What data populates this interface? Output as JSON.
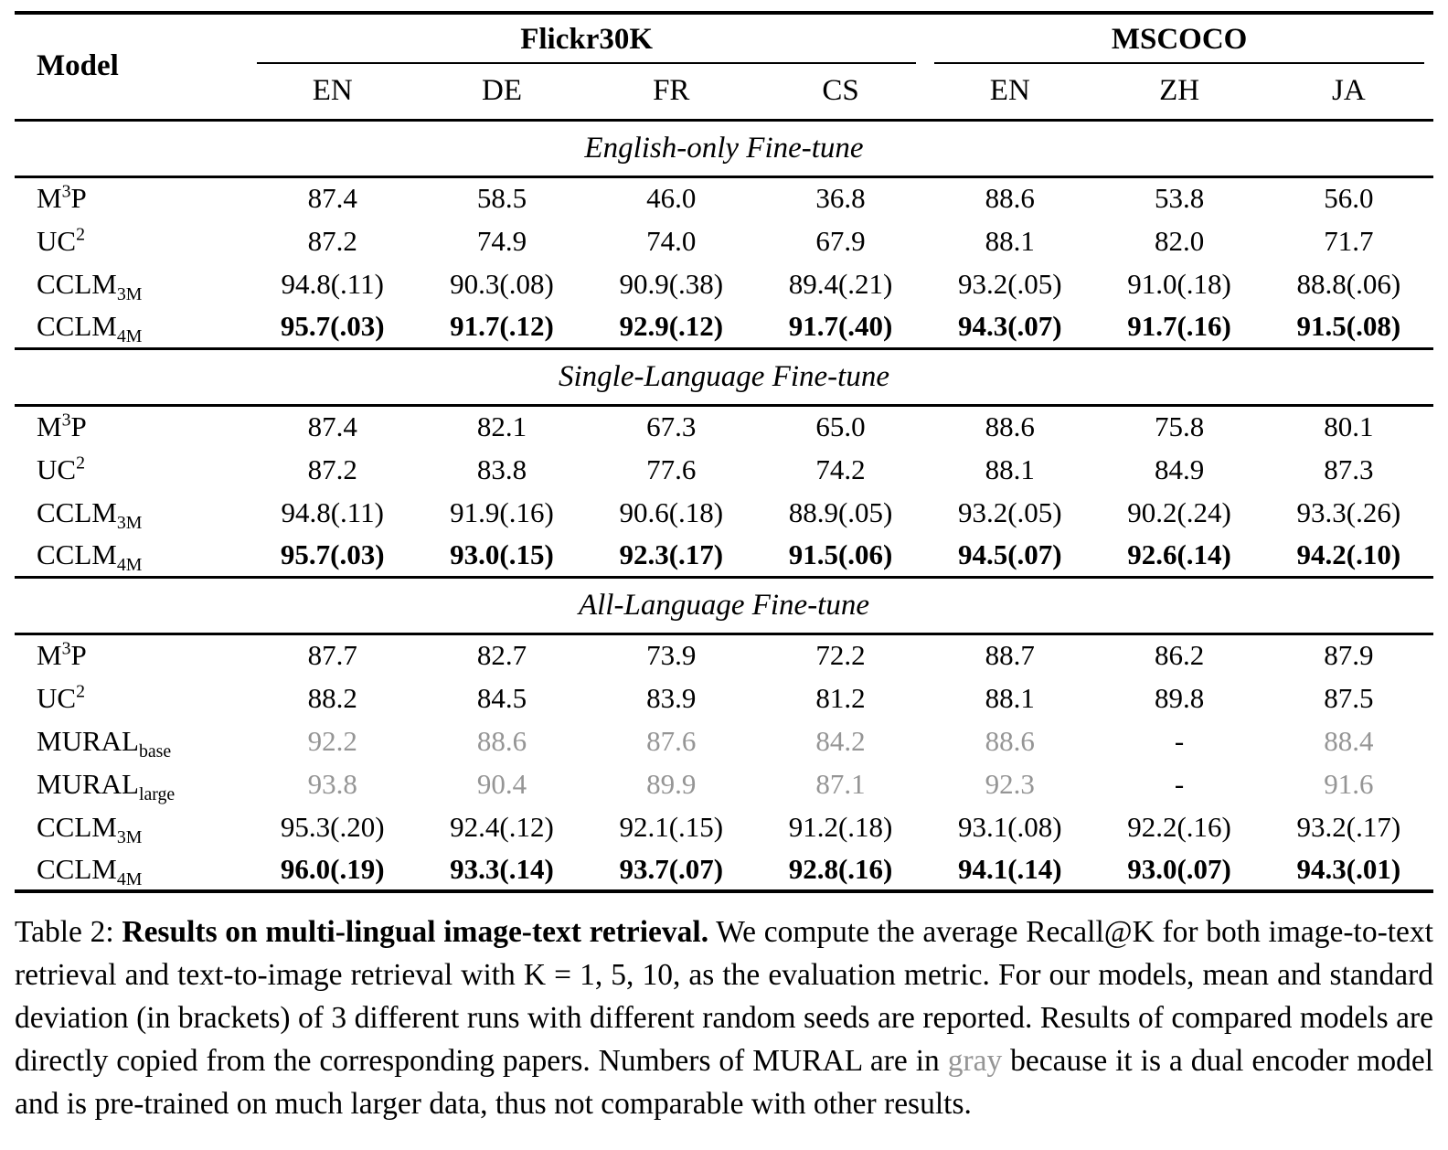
{
  "colors": {
    "text": "#000000",
    "muted_gray": "#959595",
    "background": "#ffffff"
  },
  "table": {
    "model_header": "Model",
    "groups": [
      {
        "label": "Flickr30K",
        "cols": [
          "EN",
          "DE",
          "FR",
          "CS"
        ]
      },
      {
        "label": "MSCOCO",
        "cols": [
          "EN",
          "ZH",
          "JA"
        ]
      }
    ],
    "sections": [
      {
        "title": "English-only Fine-tune",
        "rows": [
          {
            "model": [
              {
                "t": "M"
              },
              {
                "t": "3",
                "sup": true
              },
              {
                "t": "P"
              }
            ],
            "style": "normal",
            "values": [
              "87.4",
              "58.5",
              "46.0",
              "36.8",
              "88.6",
              "53.8",
              "56.0"
            ]
          },
          {
            "model": [
              {
                "t": "UC"
              },
              {
                "t": "2",
                "sup": true
              }
            ],
            "style": "normal",
            "values": [
              "87.2",
              "74.9",
              "74.0",
              "67.9",
              "88.1",
              "82.0",
              "71.7"
            ]
          },
          {
            "model": [
              {
                "t": "CCLM"
              },
              {
                "t": "3M",
                "sub": true
              }
            ],
            "style": "normal",
            "values": [
              "94.8(.11)",
              "90.3(.08)",
              "90.9(.38)",
              "89.4(.21)",
              "93.2(.05)",
              "91.0(.18)",
              "88.8(.06)"
            ]
          },
          {
            "model": [
              {
                "t": "CCLM"
              },
              {
                "t": "4M",
                "sub": true
              }
            ],
            "style": "bold-values",
            "values": [
              "95.7(.03)",
              "91.7(.12)",
              "92.9(.12)",
              "91.7(.40)",
              "94.3(.07)",
              "91.7(.16)",
              "91.5(.08)"
            ]
          }
        ]
      },
      {
        "title": "Single-Language Fine-tune",
        "rows": [
          {
            "model": [
              {
                "t": "M"
              },
              {
                "t": "3",
                "sup": true
              },
              {
                "t": "P"
              }
            ],
            "style": "normal",
            "values": [
              "87.4",
              "82.1",
              "67.3",
              "65.0",
              "88.6",
              "75.8",
              "80.1"
            ]
          },
          {
            "model": [
              {
                "t": "UC"
              },
              {
                "t": "2",
                "sup": true
              }
            ],
            "style": "normal",
            "values": [
              "87.2",
              "83.8",
              "77.6",
              "74.2",
              "88.1",
              "84.9",
              "87.3"
            ]
          },
          {
            "model": [
              {
                "t": "CCLM"
              },
              {
                "t": "3M",
                "sub": true
              }
            ],
            "style": "normal",
            "values": [
              "94.8(.11)",
              "91.9(.16)",
              "90.6(.18)",
              "88.9(.05)",
              "93.2(.05)",
              "90.2(.24)",
              "93.3(.26)"
            ]
          },
          {
            "model": [
              {
                "t": "CCLM"
              },
              {
                "t": "4M",
                "sub": true
              }
            ],
            "style": "bold-values",
            "values": [
              "95.7(.03)",
              "93.0(.15)",
              "92.3(.17)",
              "91.5(.06)",
              "94.5(.07)",
              "92.6(.14)",
              "94.2(.10)"
            ]
          }
        ]
      },
      {
        "title": "All-Language Fine-tune",
        "rows": [
          {
            "model": [
              {
                "t": "M"
              },
              {
                "t": "3",
                "sup": true
              },
              {
                "t": "P"
              }
            ],
            "style": "normal",
            "values": [
              "87.7",
              "82.7",
              "73.9",
              "72.2",
              "88.7",
              "86.2",
              "87.9"
            ]
          },
          {
            "model": [
              {
                "t": "UC"
              },
              {
                "t": "2",
                "sup": true
              }
            ],
            "style": "normal",
            "values": [
              "88.2",
              "84.5",
              "83.9",
              "81.2",
              "88.1",
              "89.8",
              "87.5"
            ]
          },
          {
            "model": [
              {
                "t": "MURAL"
              },
              {
                "t": "base",
                "sub": true
              }
            ],
            "style": "gray-values",
            "values": [
              "92.2",
              "88.6",
              "87.6",
              "84.2",
              "88.6",
              "-",
              "88.4"
            ]
          },
          {
            "model": [
              {
                "t": "MURAL"
              },
              {
                "t": "large",
                "sub": true
              }
            ],
            "style": "gray-values",
            "values": [
              "93.8",
              "90.4",
              "89.9",
              "87.1",
              "92.3",
              "-",
              "91.6"
            ]
          },
          {
            "model": [
              {
                "t": "CCLM"
              },
              {
                "t": "3M",
                "sub": true
              }
            ],
            "style": "normal",
            "values": [
              "95.3(.20)",
              "92.4(.12)",
              "92.1(.15)",
              "91.2(.18)",
              "93.1(.08)",
              "92.2(.16)",
              "93.2(.17)"
            ]
          },
          {
            "model": [
              {
                "t": "CCLM"
              },
              {
                "t": "4M",
                "sub": true
              }
            ],
            "style": "bold-values",
            "values": [
              "96.0(.19)",
              "93.3(.14)",
              "93.7(.07)",
              "92.8(.16)",
              "94.1(.14)",
              "93.0(.07)",
              "94.3(.01)"
            ]
          }
        ]
      }
    ]
  },
  "caption": {
    "segments": [
      {
        "text": "Table 2: ",
        "style": "normal"
      },
      {
        "text": "Results on multi-lingual image-text retrieval.",
        "style": "bold"
      },
      {
        "text": " We compute the average Recall@K for both image-to-text retrieval and text-to-image retrieval with K = 1, 5, 10, as the evaluation metric. For our models, mean and standard deviation (in brackets) of 3 different runs with different random seeds are reported. Results of compared models are directly copied from the corresponding papers. Numbers of MURAL are in ",
        "style": "normal"
      },
      {
        "text": "gray",
        "style": "gray"
      },
      {
        "text": " because it is a dual encoder model and is pre-trained on much larger data, thus not comparable with other results.",
        "style": "normal"
      }
    ]
  }
}
